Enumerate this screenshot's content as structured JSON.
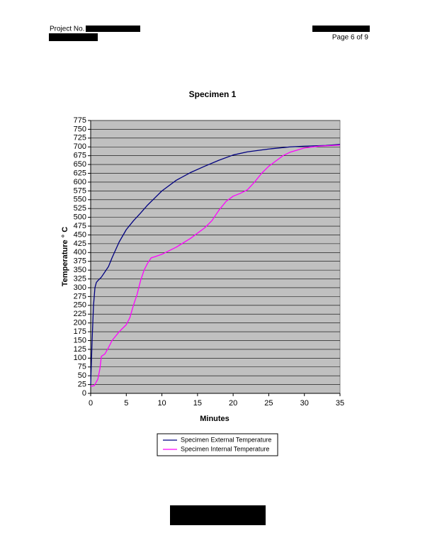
{
  "header": {
    "project_label": "Project No.",
    "page": "Page 6 of 9"
  },
  "chart_data": {
    "type": "line",
    "title": "Specimen 1",
    "x_label": "Minutes",
    "y_label": "Temperature  ° C",
    "xlim": [
      0,
      35
    ],
    "xticks": [
      0,
      5,
      10,
      15,
      20,
      25,
      30,
      35
    ],
    "ylim": [
      0,
      775
    ],
    "yticks": [
      0,
      25,
      50,
      75,
      100,
      125,
      150,
      175,
      200,
      225,
      250,
      275,
      300,
      325,
      350,
      375,
      400,
      425,
      450,
      475,
      500,
      525,
      550,
      575,
      600,
      625,
      650,
      675,
      700,
      725,
      750,
      775
    ],
    "grid": true,
    "plot_background": "#c0c0c0",
    "legend": "bottom",
    "series": [
      {
        "name": "Specimen External Temperature",
        "color": "#000080",
        "x": [
          0,
          0.2,
          0.4,
          0.6,
          0.8,
          1,
          1.5,
          2,
          2.5,
          3,
          4,
          5,
          6,
          7,
          8,
          9,
          10,
          12,
          14,
          16,
          18,
          20,
          22,
          25,
          28,
          30,
          33,
          35
        ],
        "values": [
          25,
          150,
          250,
          300,
          315,
          320,
          330,
          345,
          360,
          385,
          430,
          465,
          490,
          512,
          535,
          555,
          575,
          605,
          627,
          645,
          662,
          677,
          686,
          694,
          700,
          702,
          704,
          707
        ]
      },
      {
        "name": "Specimen Internal Temperature",
        "color": "#ff00ff",
        "x": [
          0,
          0.5,
          1,
          1.3,
          1.5,
          2,
          2.5,
          3,
          4,
          5,
          5.5,
          6,
          6.5,
          7,
          7.5,
          8,
          8.5,
          9,
          10,
          12,
          14,
          16,
          17,
          18,
          19,
          20,
          21,
          22,
          23,
          24,
          25,
          26,
          27,
          28,
          30,
          32,
          35
        ],
        "values": [
          20,
          22,
          40,
          70,
          105,
          112,
          130,
          150,
          175,
          195,
          215,
          250,
          280,
          320,
          350,
          370,
          385,
          388,
          395,
          415,
          440,
          470,
          490,
          520,
          545,
          560,
          568,
          578,
          600,
          625,
          645,
          660,
          675,
          685,
          697,
          702,
          705
        ]
      }
    ]
  }
}
